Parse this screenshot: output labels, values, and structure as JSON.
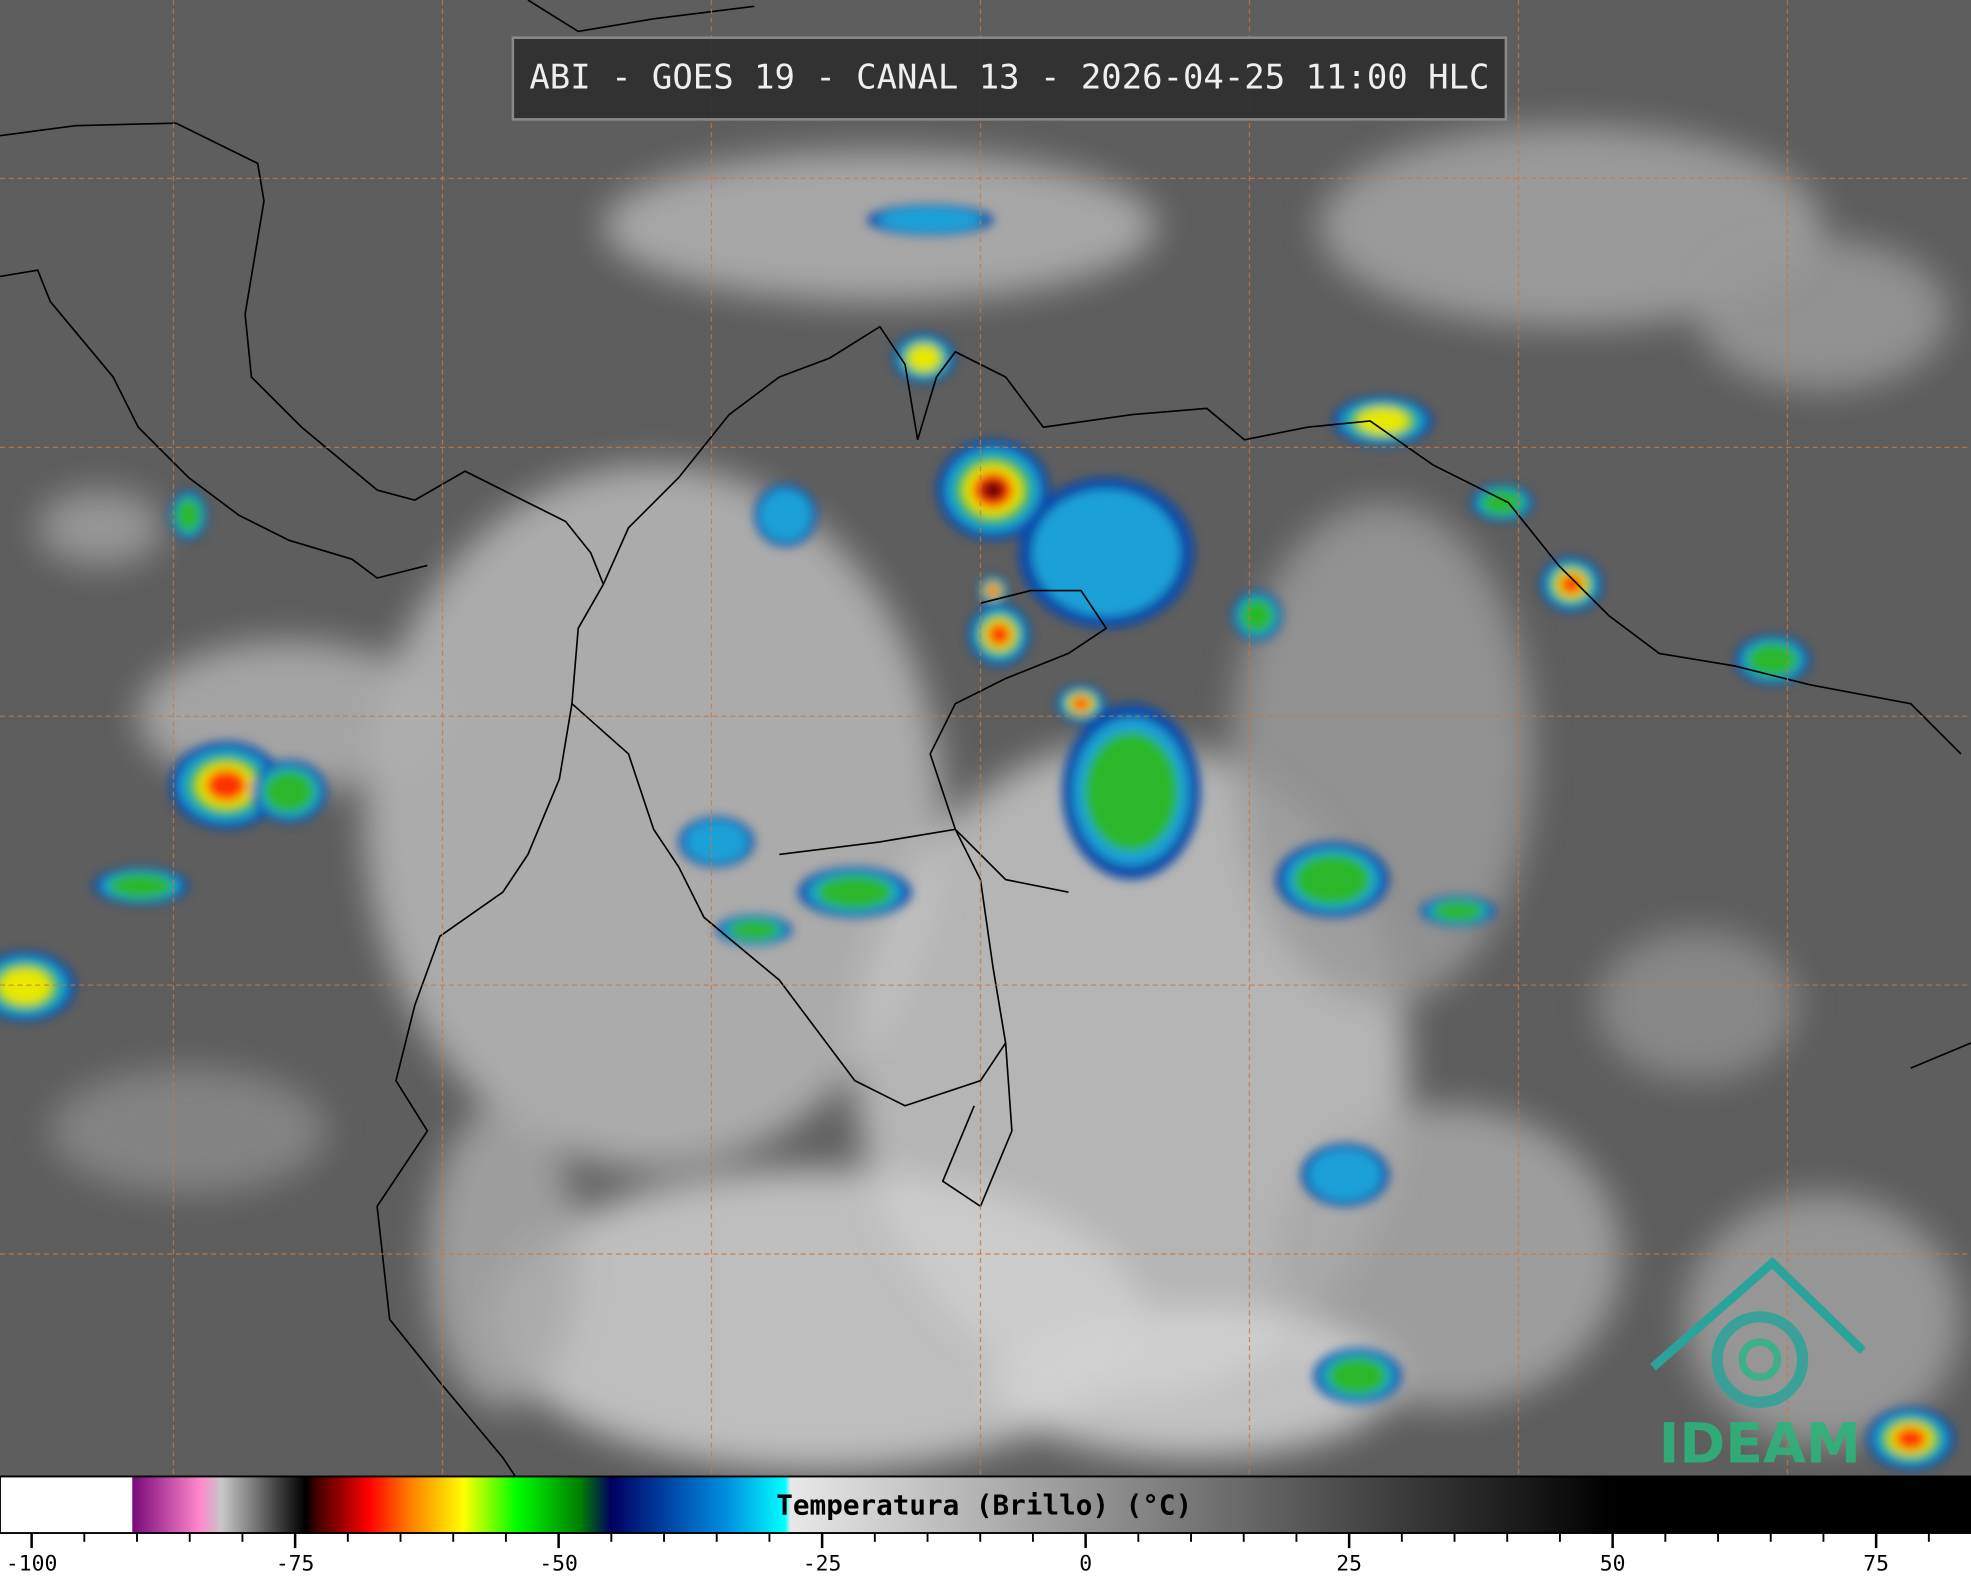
{
  "title": "ABI - GOES 19 - CANAL 13 - 2026-04-25 11:00 HLC",
  "colorbar": {
    "label": "Temperatura (Brillo) (°C)",
    "lim": [
      -103,
      84
    ],
    "ticks": [
      -100,
      -75,
      -50,
      -25,
      0,
      25,
      50,
      75
    ],
    "minor_ticks": [
      -95,
      -90,
      -85,
      -80,
      -70,
      -65,
      -60,
      -55,
      -45,
      -40,
      -35,
      -30,
      -20,
      -15,
      -10,
      -5,
      5,
      10,
      15,
      20,
      30,
      35,
      40,
      45,
      55,
      60,
      65,
      70,
      80
    ],
    "colormap": [
      {
        "value": -103,
        "color": "#ffffff"
      },
      {
        "value": -90.5,
        "color": "#ffffff"
      },
      {
        "value": -90.4,
        "color": "#7a0a7a"
      },
      {
        "value": -84,
        "color": "#ff88cc"
      },
      {
        "value": -82,
        "color": "#c8c8c8"
      },
      {
        "value": -76,
        "color": "#303030"
      },
      {
        "value": -74,
        "color": "#000000"
      },
      {
        "value": -73,
        "color": "#400000"
      },
      {
        "value": -68,
        "color": "#ff0000"
      },
      {
        "value": -64,
        "color": "#ff8000"
      },
      {
        "value": -59,
        "color": "#ffff00"
      },
      {
        "value": -54,
        "color": "#00ff00"
      },
      {
        "value": -48,
        "color": "#008000"
      },
      {
        "value": -45,
        "color": "#000060"
      },
      {
        "value": -40,
        "color": "#0040a0"
      },
      {
        "value": -34,
        "color": "#0090e0"
      },
      {
        "value": -28.5,
        "color": "#00ffff"
      },
      {
        "value": -28,
        "color": "#e8e8e8"
      },
      {
        "value": 50,
        "color": "#000000"
      },
      {
        "value": 84,
        "color": "#000000"
      }
    ]
  },
  "logo": {
    "text": "IDEAM"
  }
}
